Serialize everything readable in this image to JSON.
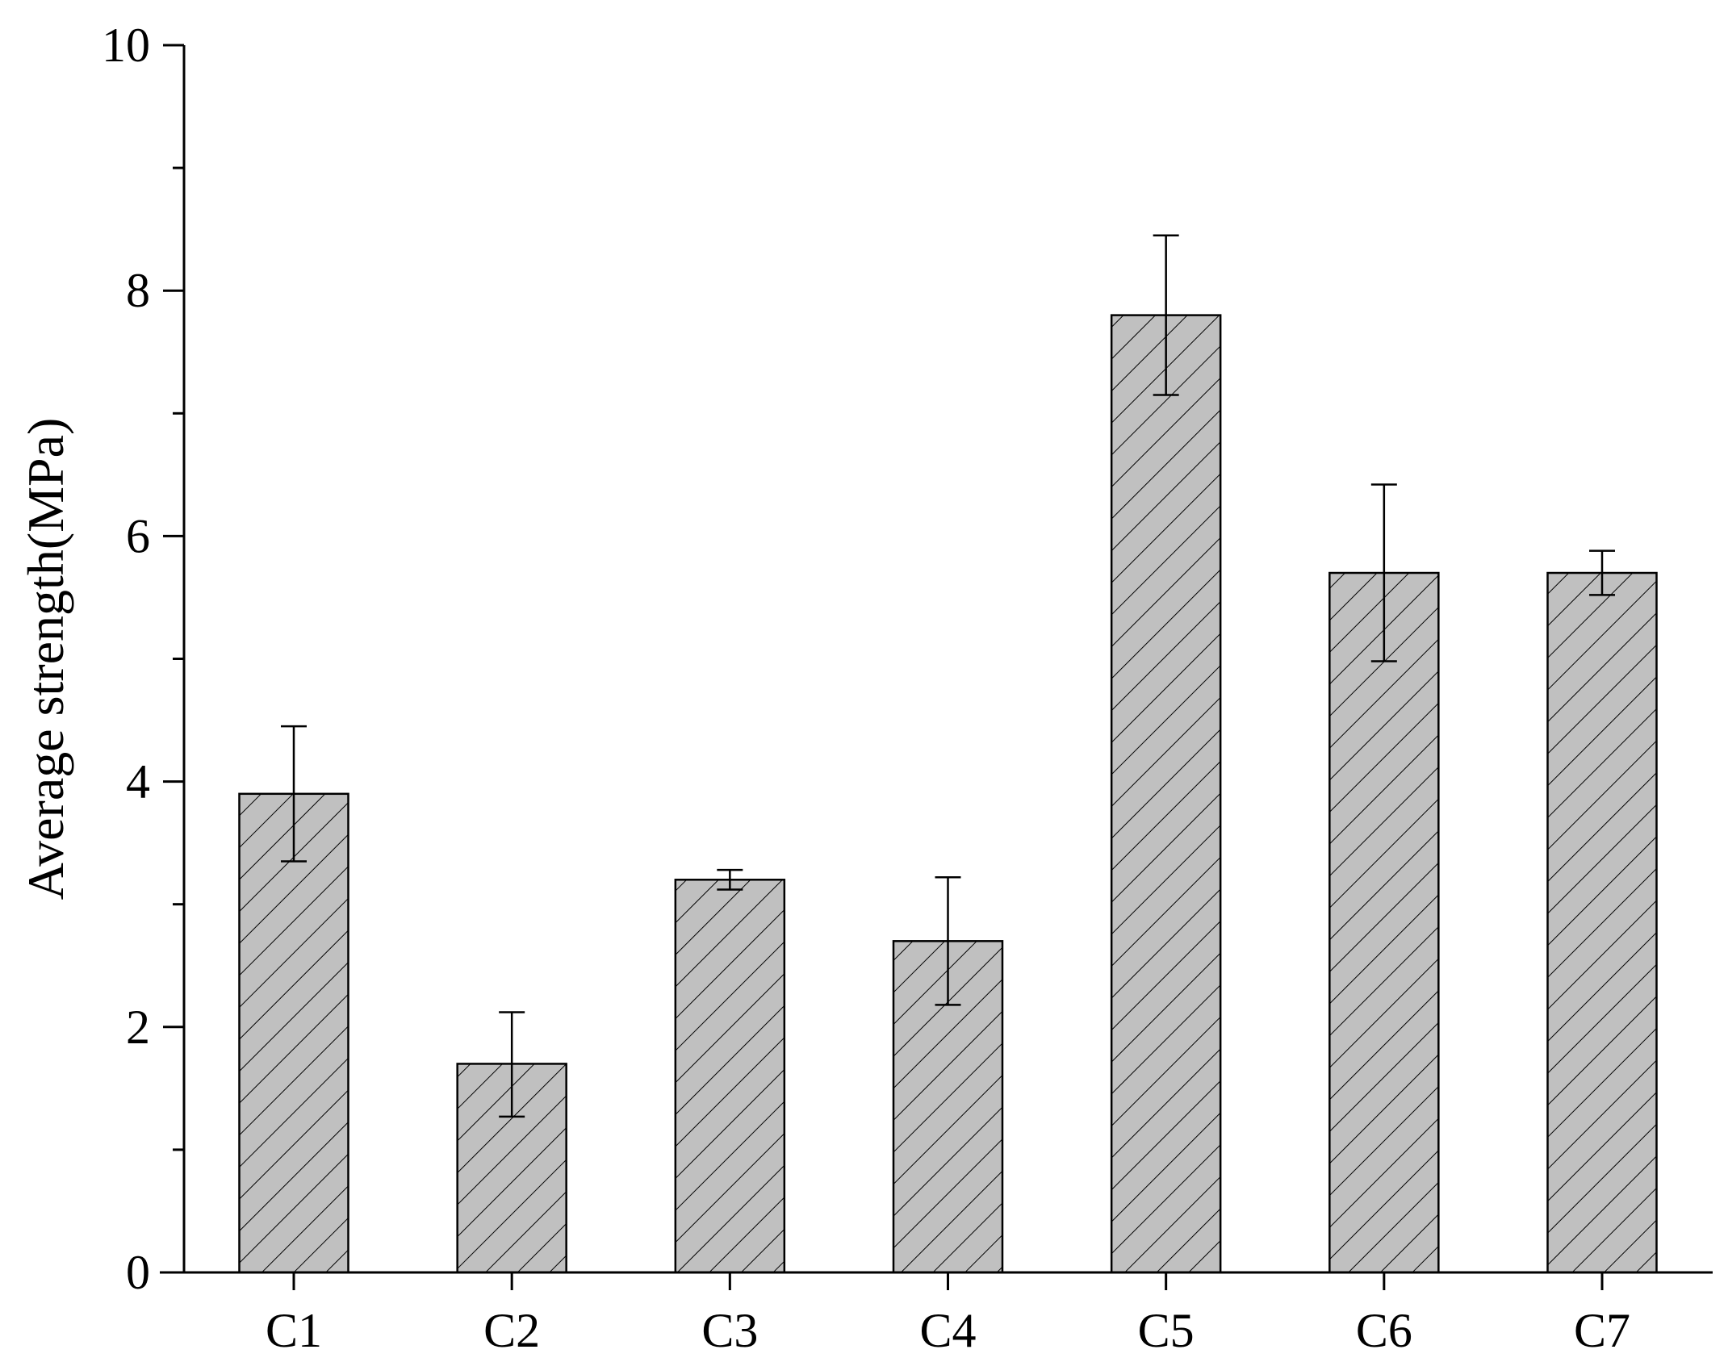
{
  "chart_data": {
    "type": "bar",
    "title": "",
    "xlabel": "",
    "ylabel": "Average strength(MPa)",
    "categories": [
      "C1",
      "C2",
      "C3",
      "C4",
      "C5",
      "C6",
      "C7"
    ],
    "values": [
      3.9,
      1.7,
      3.2,
      2.7,
      7.8,
      5.7,
      5.7
    ],
    "error_low": [
      3.35,
      1.27,
      3.12,
      2.18,
      7.15,
      4.98,
      5.52
    ],
    "error_high": [
      4.45,
      2.12,
      3.28,
      3.22,
      8.45,
      6.42,
      5.88
    ],
    "ylim": [
      0,
      10
    ],
    "yticks": [
      0,
      2,
      4,
      6,
      8,
      10
    ],
    "ytick_labels": [
      "0",
      "2",
      "4",
      "6",
      "8",
      "10"
    ],
    "grid": false,
    "legend": "none",
    "bar_fill": "#c0c0c0",
    "bar_pattern": "diagonal-hatch",
    "bar_edge_color": "#000000"
  }
}
